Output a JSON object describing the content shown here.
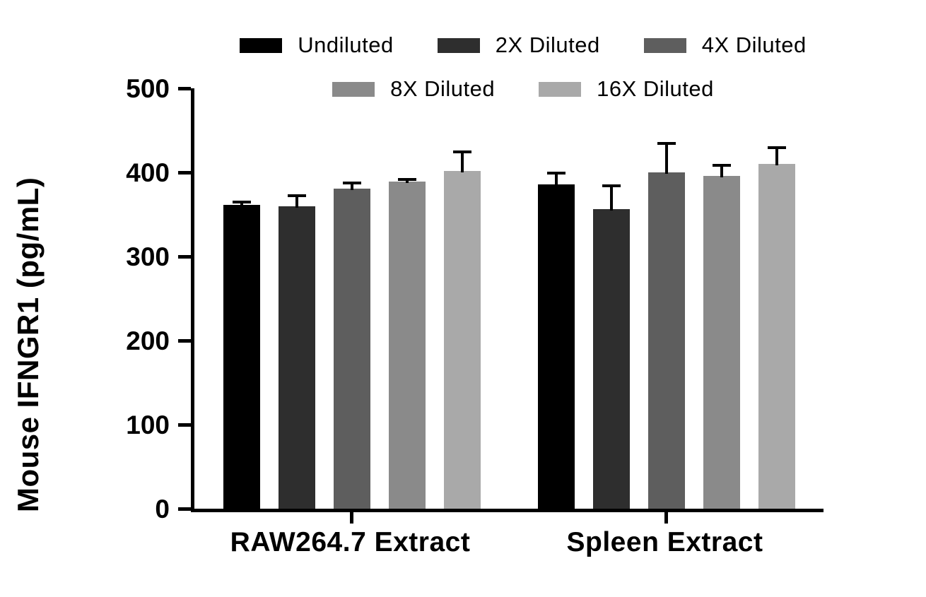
{
  "chart_data": {
    "type": "bar",
    "title": "",
    "xlabel": "",
    "ylabel": "Mouse IFNGR1 (pg/mL)",
    "ylim": [
      0,
      500
    ],
    "yticks": [
      0,
      100,
      200,
      300,
      400,
      500
    ],
    "grid": false,
    "legend_position": "top",
    "categories": [
      "RAW264.7 Extract",
      "Spleen Extract"
    ],
    "series": [
      {
        "name": "Undiluted",
        "color": "#000000",
        "values": [
          361,
          386
        ],
        "errors": [
          5,
          15
        ]
      },
      {
        "name": "2X Diluted",
        "color": "#2e2e2e",
        "values": [
          360,
          356
        ],
        "errors": [
          14,
          30
        ]
      },
      {
        "name": "4X Diluted",
        "color": "#5e5e5e",
        "values": [
          381,
          400
        ],
        "errors": [
          8,
          36
        ]
      },
      {
        "name": "8X Diluted",
        "color": "#8a8a8a",
        "values": [
          389,
          396
        ],
        "errors": [
          4,
          14
        ]
      },
      {
        "name": "16X Diluted",
        "color": "#a9a9a9",
        "values": [
          402,
          410
        ],
        "errors": [
          24,
          21
        ]
      }
    ]
  }
}
